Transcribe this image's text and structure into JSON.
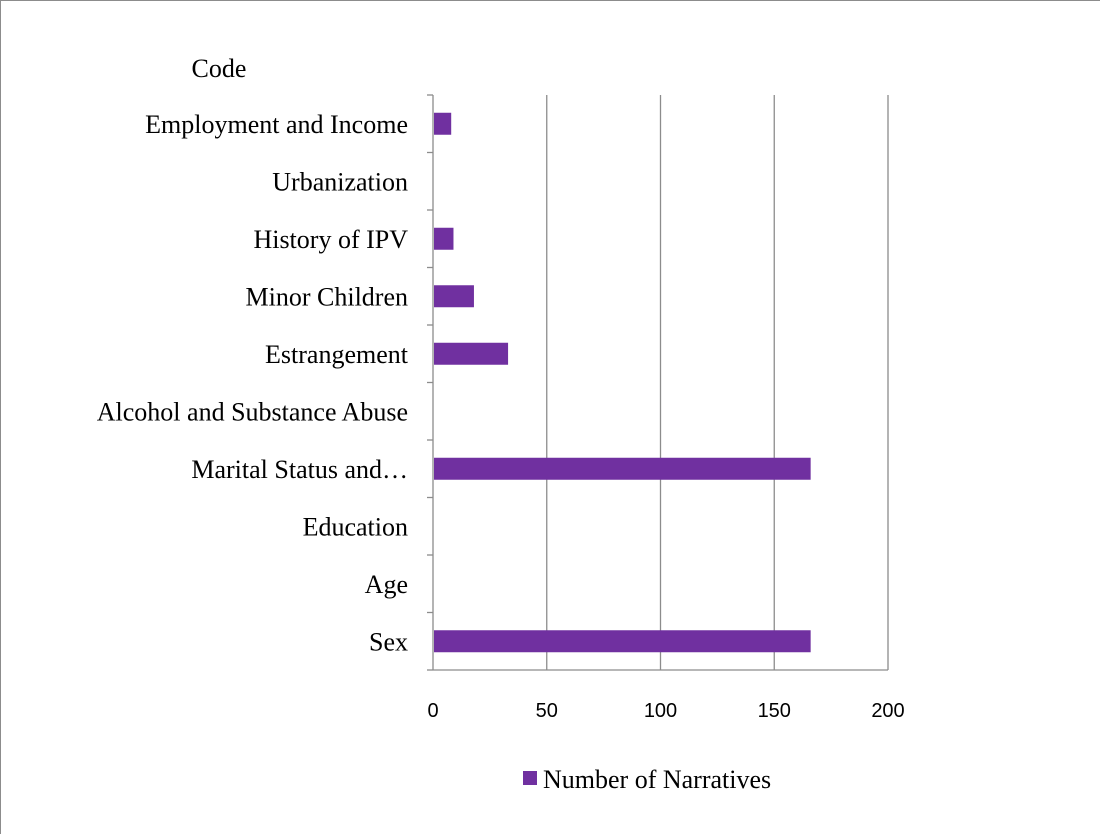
{
  "chart_data": {
    "type": "bar",
    "orientation": "horizontal",
    "ylabel": "Code",
    "categories": [
      "Sex",
      "Age",
      "Education",
      "Marital Status and…",
      "Alcohol and Substance Abuse",
      "Estrangement",
      "Minor Children",
      "History of IPV",
      "Urbanization",
      "Employment and Income"
    ],
    "series": [
      {
        "name": "Number of Narratives",
        "color": "#7030a0",
        "values": [
          166,
          0,
          0,
          166,
          0,
          33,
          18,
          9,
          0,
          8
        ]
      }
    ],
    "xlim": [
      0,
      200
    ],
    "xticks": [
      "0",
      "50",
      "100",
      "150",
      "200"
    ],
    "grid": "vertical",
    "legend_position": "bottom"
  }
}
